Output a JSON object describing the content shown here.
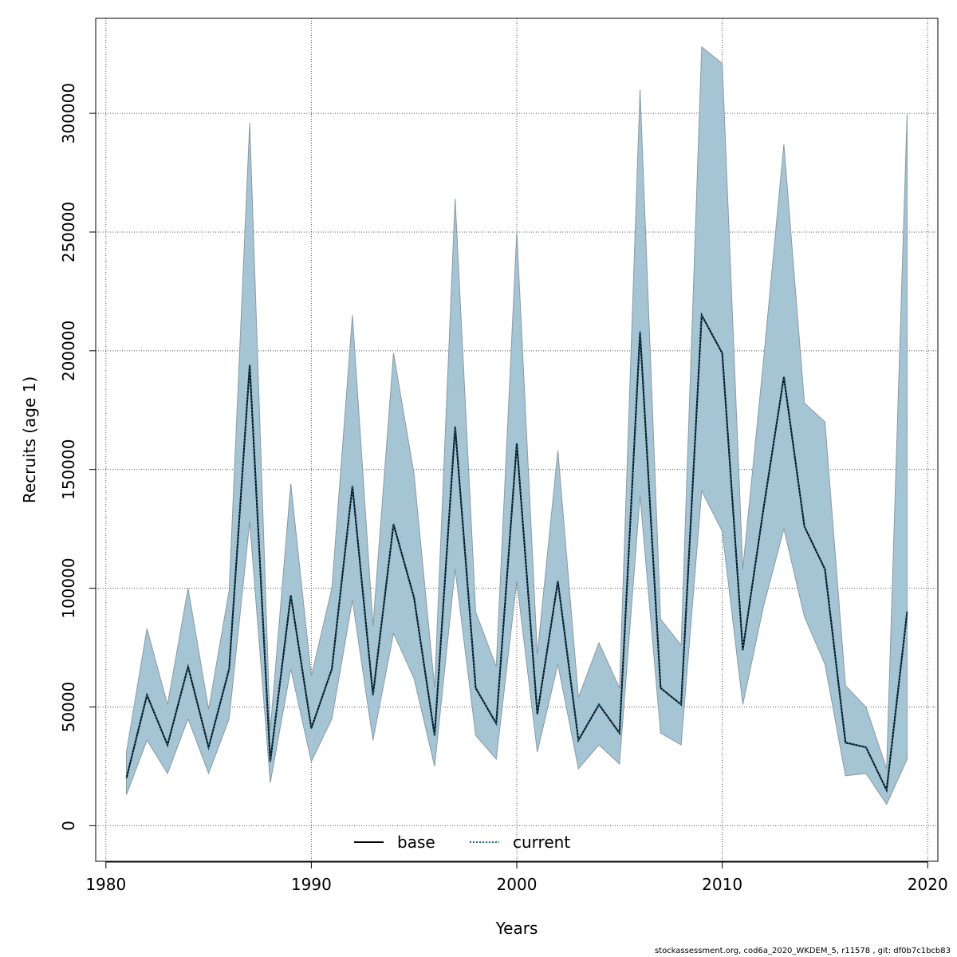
{
  "chart_data": {
    "type": "area",
    "xlabel": "Years",
    "ylabel": "Recruits (age 1)",
    "xlim": [
      1980,
      2020
    ],
    "ylim": [
      -15000,
      340000
    ],
    "x_ticks": [
      1980,
      1990,
      2000,
      2010,
      2020
    ],
    "y_ticks": [
      0,
      50000,
      100000,
      150000,
      200000,
      250000,
      300000
    ],
    "grid": true,
    "legend_position": "bottom-center",
    "colors": {
      "band_fill": "#a5c4d4",
      "band_edge": "#8a9aa3",
      "base_line": "#000000",
      "current_line": "#1f5c7a",
      "grid": "#555555"
    },
    "x": [
      1981,
      1982,
      1983,
      1984,
      1985,
      1986,
      1987,
      1988,
      1989,
      1990,
      1991,
      1992,
      1993,
      1994,
      1995,
      1996,
      1997,
      1998,
      1999,
      2000,
      2001,
      2002,
      2003,
      2004,
      2005,
      2006,
      2007,
      2008,
      2009,
      2010,
      2011,
      2012,
      2013,
      2014,
      2015,
      2016,
      2017,
      2018,
      2019
    ],
    "series": [
      {
        "name": "base",
        "style": "solid",
        "values": [
          20000,
          55000,
          34000,
          67000,
          33000,
          66000,
          194000,
          27000,
          97000,
          41000,
          66000,
          143000,
          55000,
          127000,
          96000,
          38000,
          168000,
          58000,
          43000,
          161000,
          47000,
          103000,
          36000,
          51000,
          39000,
          208000,
          58000,
          51000,
          215000,
          199000,
          74000,
          133000,
          189000,
          126000,
          108000,
          35000,
          33000,
          15000,
          90000
        ]
      },
      {
        "name": "current",
        "style": "dotted",
        "values": [
          20000,
          55000,
          34000,
          67000,
          33000,
          66000,
          194000,
          27000,
          97000,
          41000,
          66000,
          143000,
          55000,
          127000,
          96000,
          38000,
          168000,
          58000,
          43000,
          161000,
          47000,
          103000,
          36000,
          51000,
          39000,
          208000,
          58000,
          51000,
          215000,
          199000,
          74000,
          133000,
          189000,
          126000,
          108000,
          35000,
          33000,
          15000,
          90000
        ]
      }
    ],
    "band": {
      "upper": [
        31000,
        83000,
        51000,
        100000,
        49000,
        99000,
        296000,
        40000,
        144000,
        63000,
        100000,
        215000,
        84000,
        199000,
        148000,
        58000,
        264000,
        90000,
        67000,
        250000,
        72000,
        158000,
        54000,
        77000,
        58000,
        310000,
        87000,
        76000,
        328000,
        321000,
        108000,
        195000,
        287000,
        178000,
        170000,
        59000,
        50000,
        24000,
        300000
      ],
      "lower": [
        13000,
        36000,
        22000,
        45000,
        22000,
        45000,
        128000,
        18000,
        66000,
        27000,
        45000,
        95000,
        36000,
        81000,
        62000,
        25000,
        108000,
        38000,
        28000,
        103000,
        31000,
        68000,
        24000,
        34000,
        26000,
        139000,
        39000,
        34000,
        141000,
        124000,
        51000,
        92000,
        125000,
        88000,
        68000,
        21000,
        22000,
        9000,
        28000
      ]
    }
  },
  "footer": {
    "text": "stockassessment.org, cod6a_2020_WKDEM_5, r11578 , git: df0b7c1bcb83"
  }
}
